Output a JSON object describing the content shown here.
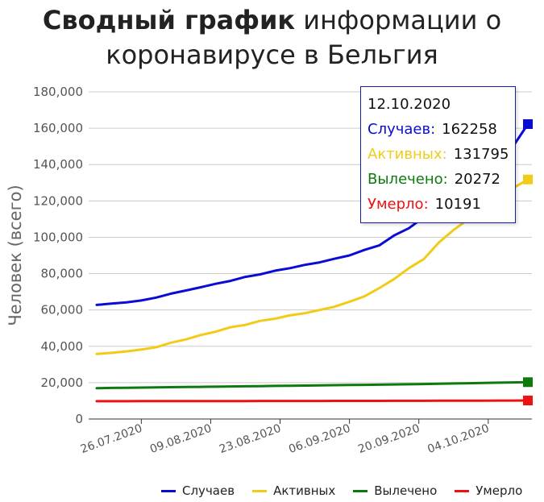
{
  "title": {
    "bold": "Сводный график",
    "rest_line1": " информации о",
    "line2": "коронавирусе в Бельгия"
  },
  "chart_data": {
    "type": "line",
    "title": "Сводный график информации о коронавирусе в Бельгия",
    "ylabel": "Человек (всего)",
    "xlabel": "",
    "ylim": [
      0,
      180000
    ],
    "y_ticks": [
      "0",
      "20,000",
      "40,000",
      "60,000",
      "80,000",
      "100,000",
      "120,000",
      "140,000",
      "160,000",
      "180,000"
    ],
    "x_ticks": [
      "26.07.2020",
      "09.08.2020",
      "23.08.2020",
      "06.09.2020",
      "20.09.2020",
      "04.10.2020"
    ],
    "x_start": "2020-07-17",
    "x_end": "2020-10-12",
    "grid": true,
    "legend_position": "bottom-right",
    "x": [
      "17.07",
      "20.07",
      "23.07",
      "26.07",
      "29.07",
      "01.08",
      "04.08",
      "07.08",
      "10.08",
      "13.08",
      "16.08",
      "19.08",
      "22.08",
      "25.08",
      "28.08",
      "31.08",
      "03.09",
      "06.09",
      "09.09",
      "12.09",
      "15.09",
      "18.09",
      "21.09",
      "24.09",
      "27.09",
      "30.09",
      "03.10",
      "06.10",
      "09.10",
      "12.10"
    ],
    "series": [
      {
        "name": "Случаев",
        "color": "#0b0bd6",
        "values": [
          62800,
          63500,
          64200,
          65200,
          66800,
          69000,
          70700,
          72500,
          74400,
          76000,
          78200,
          79600,
          81600,
          83000,
          84800,
          86200,
          88200,
          90000,
          93000,
          95500,
          101000,
          105000,
          111000,
          118000,
          123000,
          128000,
          135000,
          143000,
          150000,
          162258
        ]
      },
      {
        "name": "Активных",
        "color": "#f2cb17",
        "values": [
          35800,
          36400,
          37200,
          38200,
          39500,
          42000,
          43800,
          46200,
          48000,
          50500,
          51800,
          54000,
          55200,
          57000,
          58200,
          60000,
          61800,
          64500,
          67500,
          72000,
          77000,
          83000,
          88000,
          97000,
          104000,
          110000,
          116000,
          122000,
          127000,
          131795
        ]
      },
      {
        "name": "Вылечено",
        "color": "#0d7a0d",
        "values": [
          17000,
          17100,
          17200,
          17300,
          17400,
          17500,
          17600,
          17700,
          17800,
          17900,
          18000,
          18100,
          18200,
          18300,
          18400,
          18500,
          18600,
          18700,
          18800,
          18900,
          19000,
          19100,
          19250,
          19400,
          19550,
          19700,
          19850,
          20000,
          20150,
          20272
        ]
      },
      {
        "name": "Умерло",
        "color": "#ee1111",
        "values": [
          9800,
          9810,
          9820,
          9830,
          9840,
          9850,
          9860,
          9870,
          9880,
          9890,
          9900,
          9910,
          9920,
          9930,
          9940,
          9950,
          9960,
          9970,
          9980,
          9990,
          10000,
          10020,
          10040,
          10060,
          10080,
          10100,
          10120,
          10140,
          10165,
          10191
        ]
      }
    ]
  },
  "tooltip": {
    "date": "12.10.2020",
    "rows": [
      {
        "label": "Случаев:",
        "value": "162258",
        "color": "#0b0bd6"
      },
      {
        "label": "Активных:",
        "value": "131795",
        "color": "#f2cb17"
      },
      {
        "label": "Вылечено:",
        "value": "20272",
        "color": "#0d7a0d"
      },
      {
        "label": "Умерло:",
        "value": "10191",
        "color": "#ee1111"
      }
    ]
  }
}
